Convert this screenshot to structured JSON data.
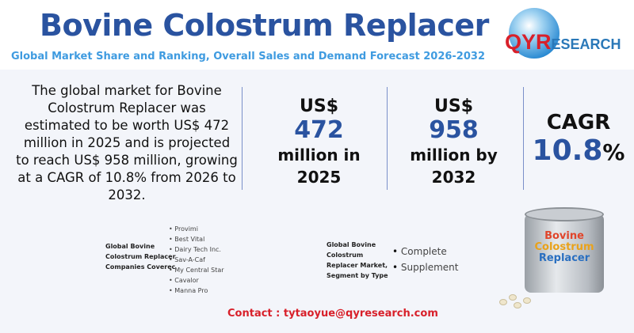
{
  "header": {
    "title": "Bovine Colostrum Replacer",
    "subtitle": "Global Market Share and Ranking, Overall Sales and Demand Forecast 2026-2032"
  },
  "logo": {
    "brand_q": "QYR",
    "brand_rest": "ESEARCH",
    "colors": {
      "red": "#d8202a",
      "blue": "#2a78b8"
    }
  },
  "intro": "The global market for Bovine Colostrum Replacer was estimated to be worth US$ 472 million in 2025 and is projected to reach US$ 958 million, growing at a CAGR of 10.8% from 2026 to 2032.",
  "stats": [
    {
      "currency": "US$",
      "value": "472",
      "unit": "million in",
      "year": "2025"
    },
    {
      "currency": "US$",
      "value": "958",
      "unit": "million by",
      "year": "2032"
    }
  ],
  "cagr": {
    "label": "CAGR",
    "value": "10.8",
    "percent": "%"
  },
  "companies": {
    "label": "Global Bovine Colostrum Replacer Companies Coverec",
    "items": [
      "Provimi",
      "Best Vital",
      "Dairy Tech Inc.",
      "Sav-A-Caf",
      "My Central Star",
      "Cavalor",
      "Manna Pro"
    ]
  },
  "segments": {
    "label": "Global Bovine Colostrum Replacer Market, Segment by Type",
    "items": [
      "Complete",
      "Supplement"
    ]
  },
  "product": {
    "l1": "Bovine",
    "l2": "Colostrum",
    "l3": "Replacer"
  },
  "contact": "Contact : tytaoyue@qyresearch.com",
  "colors": {
    "title": "#2a53a0",
    "subtitle": "#3f9be0",
    "accent_red": "#d8202a"
  }
}
